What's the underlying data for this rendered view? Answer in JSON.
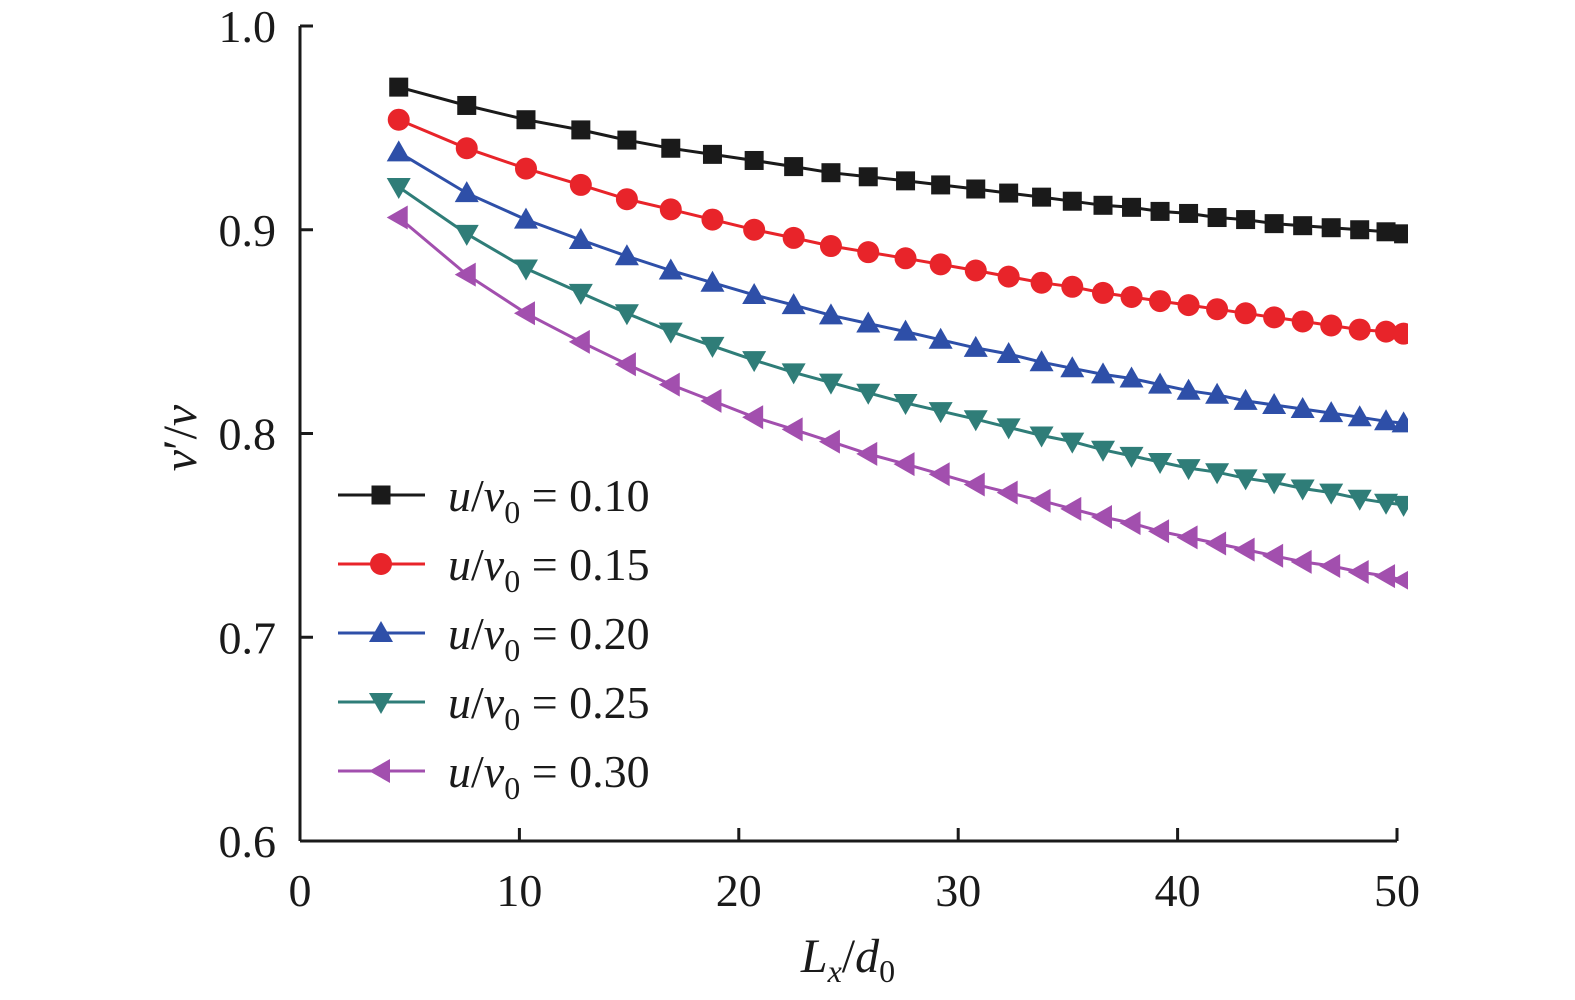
{
  "chart_data": {
    "type": "line",
    "xlabel": {
      "main": "L",
      "sub": "x",
      "sep": "/",
      "main2": "d",
      "sub2": "0"
    },
    "ylabel": {
      "main": "v",
      "prime": "′",
      "sep": "/",
      "main2": "v"
    },
    "xlim": [
      0,
      50
    ],
    "ylim": [
      0.6,
      1.0
    ],
    "x_ticks": [
      "0",
      "10",
      "20",
      "30",
      "40",
      "50"
    ],
    "y_ticks": [
      "0.6",
      "0.7",
      "0.8",
      "0.9",
      "1.0"
    ],
    "grid": false,
    "legend_position": "lower-left",
    "x": [
      4.5,
      7.6,
      10.3,
      12.8,
      14.9,
      16.9,
      18.8,
      20.7,
      22.5,
      24.2,
      25.9,
      27.6,
      29.2,
      30.8,
      32.3,
      33.8,
      35.2,
      36.6,
      37.9,
      39.2,
      40.5,
      41.8,
      43.1,
      44.4,
      45.7,
      47.0,
      48.3,
      49.5,
      50.3
    ],
    "series": [
      {
        "name": {
          "num": "u",
          "sep": "/",
          "den": "v",
          "sub": "0",
          "rest": " = 0.10"
        },
        "color": "#1a1a1a",
        "marker": "square",
        "values": [
          0.97,
          0.961,
          0.954,
          0.949,
          0.944,
          0.94,
          0.937,
          0.934,
          0.931,
          0.928,
          0.926,
          0.924,
          0.922,
          0.92,
          0.918,
          0.916,
          0.914,
          0.912,
          0.911,
          0.909,
          0.908,
          0.906,
          0.905,
          0.903,
          0.902,
          0.901,
          0.9,
          0.899,
          0.898
        ]
      },
      {
        "name": {
          "num": "u",
          "sep": "/",
          "den": "v",
          "sub": "0",
          "rest": " = 0.15"
        },
        "color": "#e8242a",
        "marker": "circle",
        "values": [
          0.954,
          0.94,
          0.93,
          0.922,
          0.915,
          0.91,
          0.905,
          0.9,
          0.896,
          0.892,
          0.889,
          0.886,
          0.883,
          0.88,
          0.877,
          0.874,
          0.872,
          0.869,
          0.867,
          0.865,
          0.863,
          0.861,
          0.859,
          0.857,
          0.855,
          0.853,
          0.851,
          0.85,
          0.849
        ]
      },
      {
        "name": {
          "num": "u",
          "sep": "/",
          "den": "v",
          "sub": "0",
          "rest": " = 0.20"
        },
        "color": "#2e4fa8",
        "marker": "triangle-up",
        "values": [
          0.938,
          0.918,
          0.905,
          0.895,
          0.887,
          0.88,
          0.874,
          0.868,
          0.863,
          0.858,
          0.854,
          0.85,
          0.846,
          0.842,
          0.839,
          0.835,
          0.832,
          0.829,
          0.827,
          0.824,
          0.821,
          0.819,
          0.816,
          0.814,
          0.812,
          0.81,
          0.808,
          0.806,
          0.805
        ]
      },
      {
        "name": {
          "num": "u",
          "sep": "/",
          "den": "v",
          "sub": "0",
          "rest": " = 0.25"
        },
        "color": "#2f7d78",
        "marker": "triangle-down",
        "values": [
          0.921,
          0.898,
          0.881,
          0.869,
          0.859,
          0.85,
          0.843,
          0.836,
          0.83,
          0.825,
          0.82,
          0.815,
          0.811,
          0.807,
          0.803,
          0.799,
          0.796,
          0.792,
          0.789,
          0.786,
          0.783,
          0.781,
          0.778,
          0.776,
          0.773,
          0.771,
          0.768,
          0.766,
          0.765
        ]
      },
      {
        "name": {
          "num": "u",
          "sep": "/",
          "den": "v",
          "sub": "0",
          "rest": " = 0.30"
        },
        "color": "#a24fae",
        "marker": "triangle-left",
        "values": [
          0.906,
          0.878,
          0.859,
          0.845,
          0.834,
          0.824,
          0.816,
          0.808,
          0.802,
          0.796,
          0.79,
          0.785,
          0.78,
          0.775,
          0.771,
          0.767,
          0.763,
          0.759,
          0.756,
          0.752,
          0.749,
          0.746,
          0.743,
          0.74,
          0.737,
          0.735,
          0.732,
          0.73,
          0.728
        ]
      }
    ]
  }
}
